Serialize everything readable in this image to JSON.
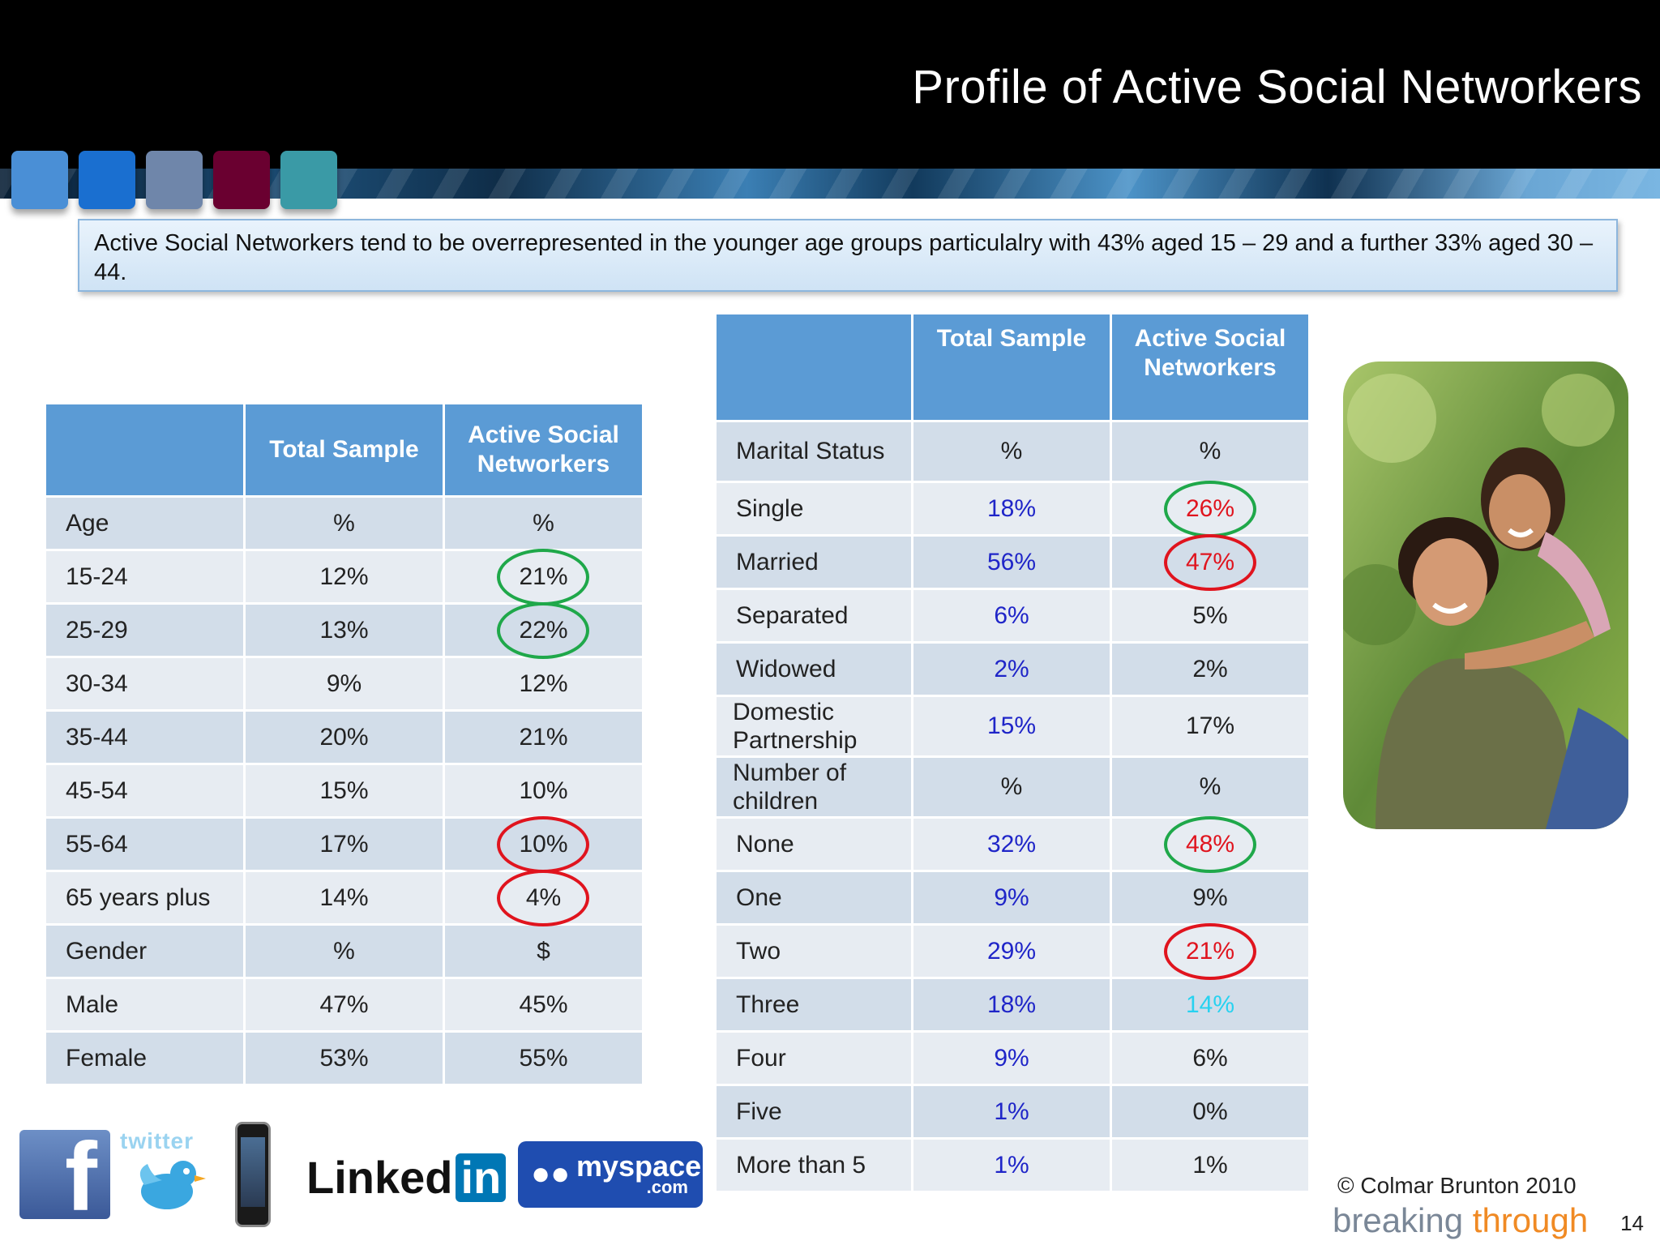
{
  "header": {
    "title": "Profile of Active Social Networkers",
    "tab_colors": [
      "#4a8fd6",
      "#1a6fd0",
      "#6f86aa",
      "#6a0030",
      "#3a9aa6"
    ]
  },
  "summary": {
    "text": "Active Social Networkers tend to be  overrepresented in the younger age groups particulalry with 43% aged 15 – 29 and a further  33% aged  30 – 44."
  },
  "table_left": {
    "headers": [
      "",
      "Total Sample",
      "Active Social Networkers"
    ],
    "rows": [
      {
        "label": "Age",
        "total": "%",
        "active": "%"
      },
      {
        "label": "15-24",
        "total": "12%",
        "active": "21%"
      },
      {
        "label": "25-29",
        "total": "13%",
        "active": "22%"
      },
      {
        "label": "30-34",
        "total": "9%",
        "active": "12%"
      },
      {
        "label": "35-44",
        "total": "20%",
        "active": "21%"
      },
      {
        "label": "45-54",
        "total": "15%",
        "active": "10%"
      },
      {
        "label": "55-64",
        "total": "17%",
        "active": "10%"
      },
      {
        "label": "65 years plus",
        "total": "14%",
        "active": "4%"
      },
      {
        "label": "Gender",
        "total": "%",
        "active": "$"
      },
      {
        "label": "Male",
        "total": "47%",
        "active": "45%"
      },
      {
        "label": "Female",
        "total": "53%",
        "active": "55%"
      }
    ]
  },
  "table_right": {
    "headers": [
      "",
      "Total Sample",
      "Active Social Networkers"
    ],
    "rows": [
      {
        "label": "Marital Status",
        "total": "%",
        "active": "%"
      },
      {
        "label": "Single",
        "total": "18%",
        "active": "26%"
      },
      {
        "label": "Married",
        "total": "56%",
        "active": "47%"
      },
      {
        "label": "Separated",
        "total": "6%",
        "active": "5%"
      },
      {
        "label": "Widowed",
        "total": "2%",
        "active": "2%"
      },
      {
        "label": "Domestic Partnership",
        "total": "15%",
        "active": "17%"
      },
      {
        "label": "Number of children",
        "total": "%",
        "active": "%"
      },
      {
        "label": "None",
        "total": "32%",
        "active": "48%"
      },
      {
        "label": "One",
        "total": "9%",
        "active": "9%"
      },
      {
        "label": "Two",
        "total": "29%",
        "active": "21%"
      },
      {
        "label": "Three",
        "total": "18%",
        "active": "14%"
      },
      {
        "label": "Four",
        "total": "9%",
        "active": "6%"
      },
      {
        "label": "Five",
        "total": "1%",
        "active": "0%"
      },
      {
        "label": "More than 5",
        "total": "1%",
        "active": "1%"
      }
    ]
  },
  "logos": {
    "twitter": "twitter",
    "linkedin_a": "Linked",
    "linkedin_b": "in",
    "myspace": "myspace",
    "myspace_com": ".com"
  },
  "footer": {
    "copyright": "© Colmar Brunton 2010",
    "brand_a": "breaking ",
    "brand_b": "through",
    "page": "14"
  }
}
